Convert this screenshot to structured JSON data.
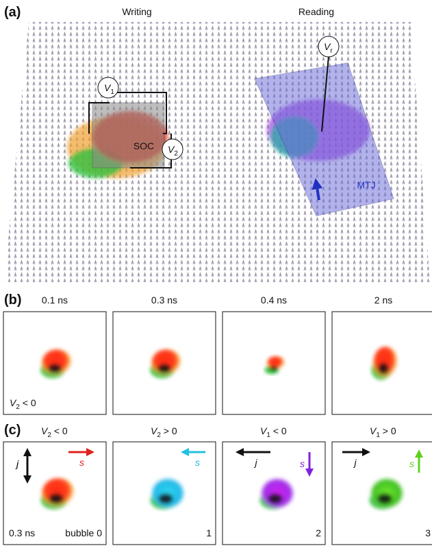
{
  "panel_a": {
    "label": "(a)",
    "writing": "Writing",
    "reading": "Reading",
    "soc": "SOC",
    "mtj": "MTJ",
    "v1": {
      "main": "V",
      "sub": "1"
    },
    "v2": {
      "main": "V",
      "sub": "2"
    },
    "vr": {
      "main": "V",
      "sub": "r"
    }
  },
  "panel_b": {
    "label": "(b)",
    "times": [
      "0.1 ns",
      "0.3 ns",
      "0.4 ns",
      "2 ns"
    ],
    "condition": {
      "main": "V",
      "sub": "2",
      "rest": " < 0"
    }
  },
  "panel_c": {
    "label": "(c)",
    "conditions": [
      {
        "main": "V",
        "sub": "2",
        "rest": " < 0"
      },
      {
        "main": "V",
        "sub": "2",
        "rest": " > 0"
      },
      {
        "main": "V",
        "sub": "1",
        "rest": " < 0"
      },
      {
        "main": "V",
        "sub": "1",
        "rest": " > 0"
      }
    ],
    "j": "j",
    "s": "s",
    "time": "0.3 ns",
    "bubbles": [
      "bubble 0",
      "1",
      "2",
      "3"
    ]
  }
}
